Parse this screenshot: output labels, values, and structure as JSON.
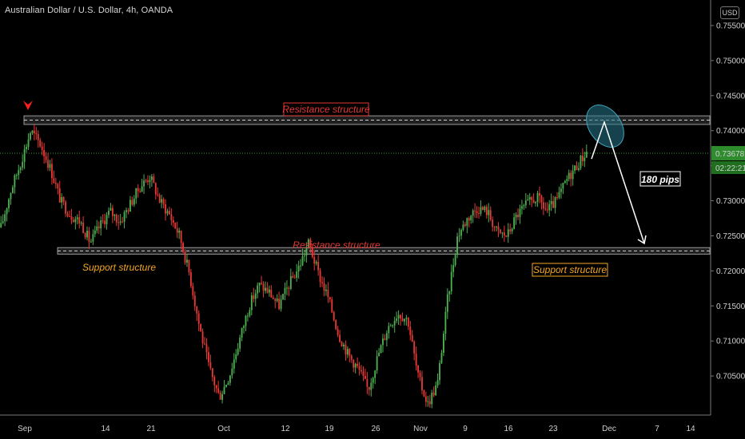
{
  "header": {
    "title": "Australian Dollar / U.S. Dollar, 4h, OANDA",
    "currency_button": "USD"
  },
  "colors": {
    "background": "#000000",
    "bull": "#4caf50",
    "bear": "#e53935",
    "resistance_label": "#e53935",
    "support_label": "#f5a623",
    "last_price_badge": "#2e8b2e",
    "arrow": "#ffffff",
    "ellipse": "#2a7a8c",
    "marker": "#ff1e1e"
  },
  "chart_data": {
    "type": "candlestick",
    "symbol": "AUDUSD",
    "timeframe": "4h",
    "source": "OANDA",
    "ylim": [
      0.7,
      0.7575
    ],
    "y_ticks": [
      "0.75500",
      "0.75000",
      "0.74500",
      "0.74000",
      "0.73500",
      "0.73000",
      "0.72500",
      "0.72000",
      "0.71500",
      "0.71000",
      "0.70500"
    ],
    "x_tick_labels": [
      "Sep",
      "14",
      "21",
      "Oct",
      "12",
      "19",
      "26",
      "Nov",
      "9",
      "16",
      "23",
      "Dec",
      "7",
      "14"
    ],
    "last_price": "0.73678",
    "countdown": "02:22:21",
    "price_path_closes": [
      0.7262,
      0.7315,
      0.7355,
      0.74,
      0.738,
      0.7345,
      0.73,
      0.728,
      0.727,
      0.724,
      0.7265,
      0.7285,
      0.727,
      0.7295,
      0.732,
      0.7335,
      0.73,
      0.728,
      0.725,
      0.7195,
      0.712,
      0.706,
      0.702,
      0.705,
      0.71,
      0.715,
      0.718,
      0.717,
      0.715,
      0.718,
      0.7205,
      0.724,
      0.7195,
      0.716,
      0.711,
      0.708,
      0.706,
      0.703,
      0.708,
      0.712,
      0.714,
      0.713,
      0.705,
      0.701,
      0.704,
      0.716,
      0.725,
      0.7275,
      0.729,
      0.7285,
      0.7255,
      0.725,
      0.728,
      0.7295,
      0.7305,
      0.7285,
      0.73,
      0.733,
      0.735,
      0.737
    ],
    "zones": [
      {
        "name": "Resistance structure",
        "low": 0.741,
        "high": 0.742
      },
      {
        "name": "Support structure",
        "low": 0.7225,
        "high": 0.7232
      }
    ],
    "annotations": [
      {
        "text": "Resistance structure",
        "boxed": true
      },
      {
        "text": "Resistance structure",
        "boxed": false
      },
      {
        "text": "Support structure",
        "boxed": false
      },
      {
        "text": "Support structure",
        "boxed": true
      },
      {
        "text": "180 pips",
        "boxed": true
      }
    ],
    "projection": {
      "from": 0.7362,
      "peak": 0.741,
      "target": 0.723
    },
    "grid": false
  }
}
